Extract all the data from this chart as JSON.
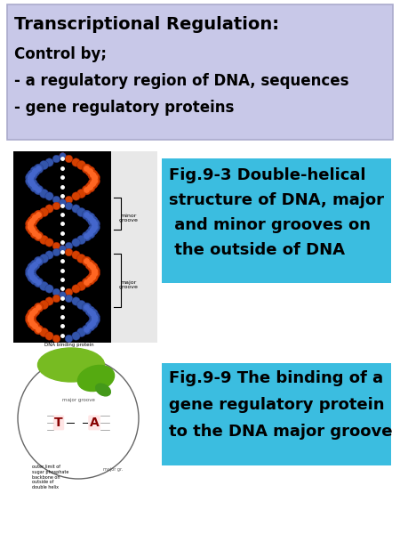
{
  "bg_color": "#ffffff",
  "top_box_color": "#c8c8e8",
  "fig_box_color": "#3bbde0",
  "title_line1": "Transcriptional Regulation:",
  "title_line2": "Control by;",
  "title_line3": "- a regulatory region of DNA, sequences",
  "title_line4": "- gene regulatory proteins",
  "fig93_line1": "Fig.9-3 Double-helical",
  "fig93_line2": "structure of DNA, major",
  "fig93_line3": " and minor grooves on",
  "fig93_line4": " the outside of DNA",
  "fig99_line1": "Fig.9-9 The binding of a",
  "fig99_line2": "gene regulatory protein",
  "fig99_line3": "to the DNA major groove",
  "title_fontsize": 14,
  "body_fontsize": 12,
  "fig_fontsize": 13
}
